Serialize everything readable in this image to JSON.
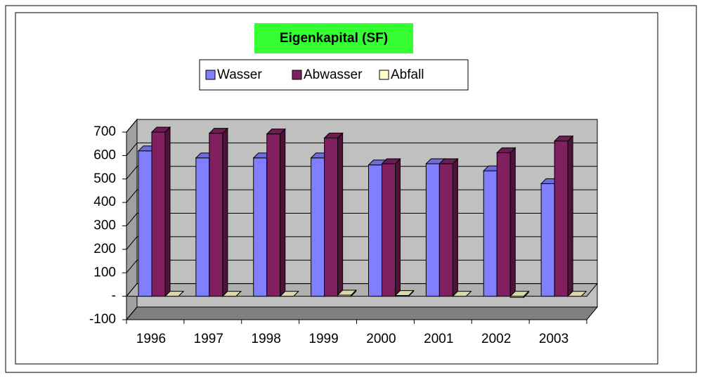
{
  "chart_data": {
    "type": "bar3d",
    "title": "Eigenkapital (SF)",
    "categories": [
      "1996",
      "1997",
      "1998",
      "1999",
      "2000",
      "2001",
      "2002",
      "2003"
    ],
    "series": [
      {
        "name": "Wasser",
        "color": "#8080ff",
        "values": [
          620,
          590,
          590,
          590,
          560,
          565,
          535,
          480
        ]
      },
      {
        "name": "Abwasser",
        "color": "#802060",
        "values": [
          700,
          695,
          692,
          675,
          565,
          565,
          612,
          662
        ]
      },
      {
        "name": "Abfall",
        "color": "#ffffcc",
        "values": [
          0,
          0,
          0,
          5,
          3,
          0,
          -5,
          0
        ]
      }
    ],
    "ylim": [
      -100,
      700
    ],
    "yticks": [
      -100,
      {
        "value": 0,
        "label": "-"
      },
      100,
      200,
      300,
      400,
      500,
      600,
      700
    ],
    "grid": true,
    "title_background": "#33ff33"
  }
}
